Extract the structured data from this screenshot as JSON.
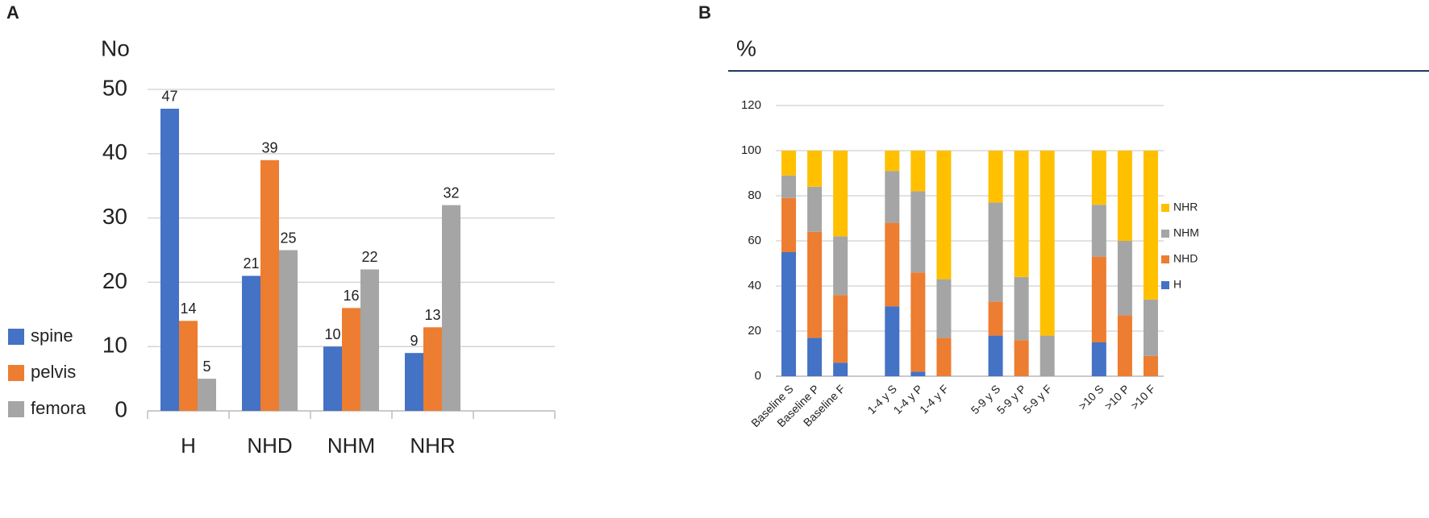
{
  "chart_data": [
    {
      "type": "bar",
      "panel_label": "A",
      "ylabel": "No",
      "categories": [
        "H",
        "NHD",
        "NHM",
        "NHR",
        null
      ],
      "series": [
        {
          "name": "spine",
          "color": "#4472c4",
          "values": [
            47,
            21,
            10,
            9,
            null
          ]
        },
        {
          "name": "pelvis",
          "color": "#ed7d31",
          "values": [
            14,
            39,
            16,
            13,
            null
          ]
        },
        {
          "name": "femora",
          "color": "#a5a5a5",
          "values": [
            5,
            25,
            22,
            32,
            null
          ]
        }
      ],
      "ylim": [
        0,
        50
      ],
      "yticks": [
        0,
        10,
        20,
        30,
        40,
        50
      ],
      "grid": true,
      "legend": "left",
      "data_labels": true
    },
    {
      "type": "stacked_bar",
      "panel_label": "B",
      "title": "%",
      "categories": [
        "Baseline S",
        "Baseline P",
        "Baseline F",
        null,
        "1-4 y S",
        "1-4 y P",
        "1-4 y F",
        null,
        "5-9 y S",
        "5-9 y P",
        "5-9 y F",
        null,
        ">10 S",
        ">10 P",
        ">10 F"
      ],
      "series": [
        {
          "name": "H",
          "color": "#4472c4",
          "values": [
            55,
            17,
            6,
            null,
            31,
            2,
            0,
            null,
            18,
            0,
            0,
            null,
            15,
            0,
            0
          ]
        },
        {
          "name": "NHD",
          "color": "#ed7d31",
          "values": [
            24,
            47,
            30,
            null,
            37,
            44,
            17,
            null,
            15,
            16,
            0,
            null,
            38,
            27,
            9
          ]
        },
        {
          "name": "NHM",
          "color": "#a5a5a5",
          "values": [
            10,
            20,
            26,
            null,
            23,
            36,
            26,
            null,
            44,
            28,
            18,
            null,
            23,
            33,
            25
          ]
        },
        {
          "name": "NHR",
          "color": "#ffc000",
          "values": [
            11,
            16,
            38,
            null,
            9,
            18,
            57,
            null,
            23,
            56,
            82,
            null,
            24,
            40,
            66
          ]
        }
      ],
      "ylim": [
        0,
        120
      ],
      "yticks": [
        0,
        20,
        40,
        60,
        80,
        100,
        120
      ],
      "grid": true,
      "legend": "right"
    }
  ]
}
